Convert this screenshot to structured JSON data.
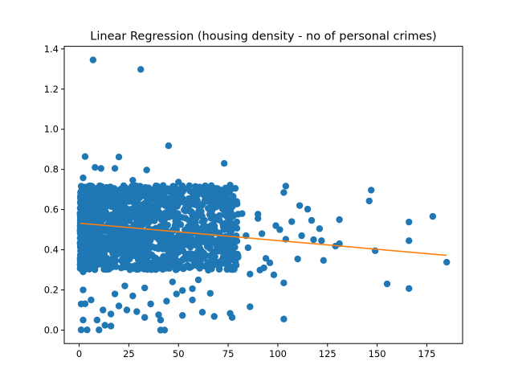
{
  "chart_data": {
    "type": "scatter",
    "title": "Linear Regression (housing density - no of personal crimes)",
    "xlabel": "",
    "ylabel": "",
    "xlim": [
      -7.5,
      193
    ],
    "ylim": [
      -0.067,
      1.413
    ],
    "x_ticks": [
      0,
      25,
      50,
      75,
      100,
      125,
      150,
      175
    ],
    "x_tick_labels": [
      "0",
      "25",
      "50",
      "75",
      "100",
      "125",
      "150",
      "175"
    ],
    "y_ticks": [
      0.0,
      0.2,
      0.4,
      0.6,
      0.8,
      1.0,
      1.2,
      1.4
    ],
    "y_tick_labels": [
      "0.0",
      "0.2",
      "0.4",
      "0.6",
      "0.8",
      "1.0",
      "1.2",
      "1.4"
    ],
    "grid": false,
    "series": [
      {
        "kind": "scatter",
        "color": "#1f77b4",
        "points": [
          [
            7,
            1.345
          ],
          [
            31,
            1.298
          ],
          [
            45,
            0.918
          ],
          [
            73,
            0.83
          ],
          [
            3,
            0.864
          ],
          [
            20,
            0.862
          ],
          [
            8,
            0.81
          ],
          [
            11,
            0.805
          ],
          [
            18,
            0.805
          ],
          [
            34,
            0.797
          ],
          [
            2,
            0.758
          ],
          [
            27,
            0.746
          ],
          [
            50,
            0.737
          ],
          [
            76,
            0.722
          ],
          [
            104,
            0.717
          ],
          [
            103,
            0.685
          ],
          [
            147,
            0.697
          ],
          [
            146,
            0.643
          ],
          [
            111,
            0.62
          ],
          [
            115,
            0.602
          ],
          [
            121,
            0.505
          ],
          [
            117,
            0.546
          ],
          [
            131,
            0.55
          ],
          [
            166,
            0.538
          ],
          [
            178,
            0.566
          ],
          [
            166,
            0.445
          ],
          [
            149,
            0.395
          ],
          [
            155,
            0.23
          ],
          [
            166,
            0.207
          ],
          [
            185,
            0.338
          ],
          [
            122,
            0.445
          ],
          [
            123,
            0.347
          ],
          [
            129,
            0.418
          ],
          [
            131,
            0.43
          ],
          [
            110,
            0.354
          ],
          [
            103,
            0.235
          ],
          [
            103,
            0.055
          ],
          [
            104,
            0.452
          ],
          [
            98,
            0.275
          ],
          [
            96,
            0.335
          ],
          [
            94,
            0.357
          ],
          [
            93,
            0.31
          ],
          [
            91,
            0.299
          ],
          [
            90,
            0.577
          ],
          [
            90,
            0.556
          ],
          [
            86,
            0.279
          ],
          [
            86,
            0.116
          ],
          [
            80,
            0.577
          ],
          [
            82,
            0.58
          ],
          [
            84,
            0.47
          ],
          [
            76,
            0.394
          ],
          [
            74,
            0.384
          ],
          [
            73,
            0.345
          ],
          [
            76,
            0.083
          ],
          [
            77,
            0.063
          ],
          [
            68,
            0.068
          ],
          [
            66,
            0.183
          ],
          [
            65,
            0.298
          ],
          [
            62,
            0.089
          ],
          [
            57,
            0.206
          ],
          [
            52,
            0.197
          ],
          [
            52,
            0.073
          ],
          [
            44,
            0.144
          ],
          [
            40,
            0.076
          ],
          [
            41,
            0.0
          ],
          [
            43,
            0.0
          ],
          [
            41,
            0.05
          ],
          [
            36,
            0.13
          ],
          [
            29,
            0.092
          ],
          [
            33,
            0.063
          ],
          [
            24,
            0.1
          ],
          [
            20,
            0.12
          ],
          [
            16,
            0.02
          ],
          [
            16,
            0.08
          ],
          [
            13,
            0.024
          ],
          [
            10,
            0.001
          ],
          [
            4,
            0.001
          ],
          [
            1,
            0.001
          ],
          [
            2,
            0.05
          ],
          [
            6,
            0.15
          ],
          [
            3,
            0.131
          ],
          [
            1,
            0.13
          ],
          [
            2,
            0.2
          ],
          [
            9,
            0.05
          ],
          [
            12,
            0.1
          ],
          [
            18,
            0.18
          ],
          [
            27,
            0.17
          ],
          [
            23,
            0.22
          ],
          [
            33,
            0.21
          ],
          [
            47,
            0.24
          ],
          [
            49,
            0.18
          ],
          [
            57,
            0.15
          ],
          [
            60,
            0.25
          ],
          [
            63,
            0.38
          ],
          [
            70,
            0.43
          ],
          [
            78,
            0.36
          ],
          [
            85,
            0.41
          ],
          [
            92,
            0.48
          ],
          [
            99,
            0.52
          ],
          [
            101,
            0.5
          ],
          [
            107,
            0.54
          ],
          [
            112,
            0.47
          ],
          [
            118,
            0.45
          ],
          [
            2,
            0.29
          ],
          [
            5,
            0.31
          ],
          [
            9,
            0.34
          ]
        ],
        "cluster_bounds": {
          "x": [
            0.5,
            80
          ],
          "y": [
            0.3,
            0.72
          ]
        }
      },
      {
        "kind": "line",
        "color": "#ff7f0e",
        "x": [
          0.5,
          185
        ],
        "y": [
          0.532,
          0.372
        ]
      }
    ]
  }
}
